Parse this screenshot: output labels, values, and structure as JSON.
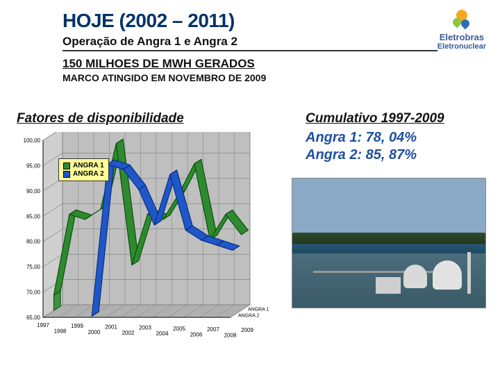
{
  "header": {
    "title": "HOJE (2002 – 2011)",
    "subtitle": "Operação de Angra 1 e Angra 2",
    "milestone": "150 MILHOES DE MWH GERADOS",
    "milestone_sub": "MARCO ATINGIDO EM NOVEMBRO DE 2009"
  },
  "brand": {
    "name": "Eletrobras",
    "sub": "Eletronuclear"
  },
  "left_section_title": "Fatores de disponibilidade",
  "right_section_title": "Cumulativo 1997-2009",
  "cumulative": {
    "angra1": "Angra 1: 78, 04%",
    "angra2": "Angra 2: 85, 87%"
  },
  "chart": {
    "type": "line-3d-ribbon",
    "xlabels": [
      "1997",
      "1998",
      "1999",
      "2000",
      "2001",
      "2002",
      "2003",
      "2004",
      "2005",
      "2006",
      "2007",
      "2008",
      "2009"
    ],
    "ylim": [
      65,
      100
    ],
    "ytick_step": 5,
    "yticks_labels": [
      "65,00",
      "70,00",
      "75,00",
      "80,00",
      "85,00",
      "90,00",
      "95,00",
      "100,00"
    ],
    "series": [
      {
        "name": "ANGRA 1",
        "color": "#2f8a2f",
        "edge": "#06500a",
        "values": [
          68,
          84,
          83,
          85,
          98,
          74,
          84,
          83,
          88,
          94,
          79,
          84,
          80
        ]
      },
      {
        "name": "ANGRA 2",
        "color": "#1f57c9",
        "edge": "#0a2e80",
        "values": [
          null,
          null,
          null,
          65,
          95,
          94,
          90,
          83,
          93,
          82,
          80,
          79,
          78
        ]
      }
    ],
    "depth_series_labels": [
      "ANGRA 2",
      "ANGRA 1"
    ],
    "colors": {
      "wall_left": "#cfcfcf",
      "wall_back": "#bfbfbf",
      "floor": "#b0b0b0",
      "grid": "#7d7d7d",
      "tick_font": "#000000",
      "legend_bg": "#ffff99",
      "legend_border": "#333333"
    },
    "fontsize_ticks": 8,
    "fontsize_legend": 10,
    "perspective": {
      "dx": 28,
      "dy": -18
    }
  }
}
